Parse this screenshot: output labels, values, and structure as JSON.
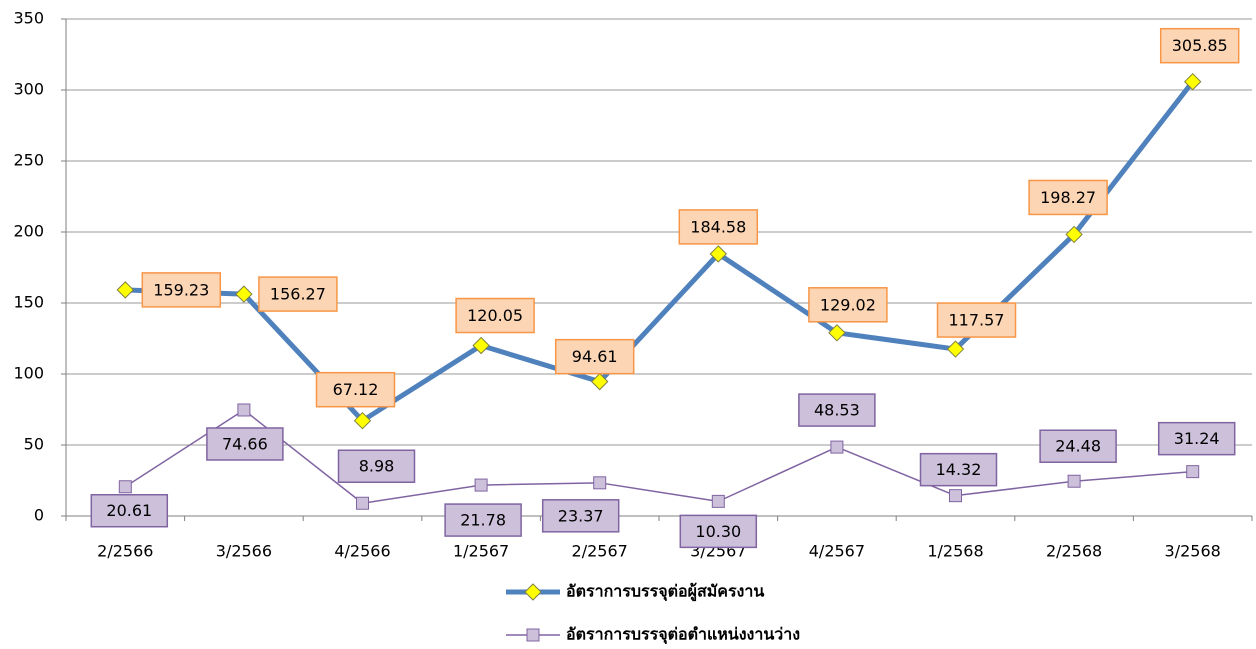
{
  "chart_data": {
    "type": "line",
    "categories": [
      "2/2566",
      "3/2566",
      "4/2566",
      "1/2567",
      "2/2567",
      "3/2567",
      "4/2567",
      "1/2568",
      "2/2568",
      "3/2568"
    ],
    "series": [
      {
        "name": "อัตราการบรรจุต่อผู้สมัครงาน",
        "color": "#4f81bd",
        "marker_color": "#ffff00",
        "label_color": "#fcd5b5",
        "label_border": "#f79646",
        "values": [
          159.23,
          156.27,
          67.12,
          120.05,
          94.61,
          184.58,
          129.02,
          117.57,
          198.27,
          305.85
        ],
        "value_labels": [
          "159.23",
          "156.27",
          "67.12",
          "120.05",
          "94.61",
          "184.58",
          "129.02",
          "117.57",
          "198.27",
          "305.85"
        ]
      },
      {
        "name": "อัตราการบรรจุต่อตำแหน่งงานว่าง",
        "color": "#8064a2",
        "marker_color": "#ccc0da",
        "label_color": "#ccc0da",
        "label_border": "#8064a2",
        "values": [
          20.61,
          74.66,
          8.98,
          21.78,
          23.37,
          10.3,
          48.53,
          14.32,
          24.48,
          31.24
        ],
        "value_labels": [
          "20.61",
          "74.66",
          "8.98",
          "21.78",
          "23.37",
          "10.30",
          "48.53",
          "14.32",
          "24.48",
          "31.24"
        ]
      }
    ],
    "ylim": [
      0,
      350
    ],
    "yticks": [
      0,
      50,
      100,
      150,
      200,
      250,
      300,
      350
    ],
    "grid": true,
    "legend": "bottom"
  }
}
